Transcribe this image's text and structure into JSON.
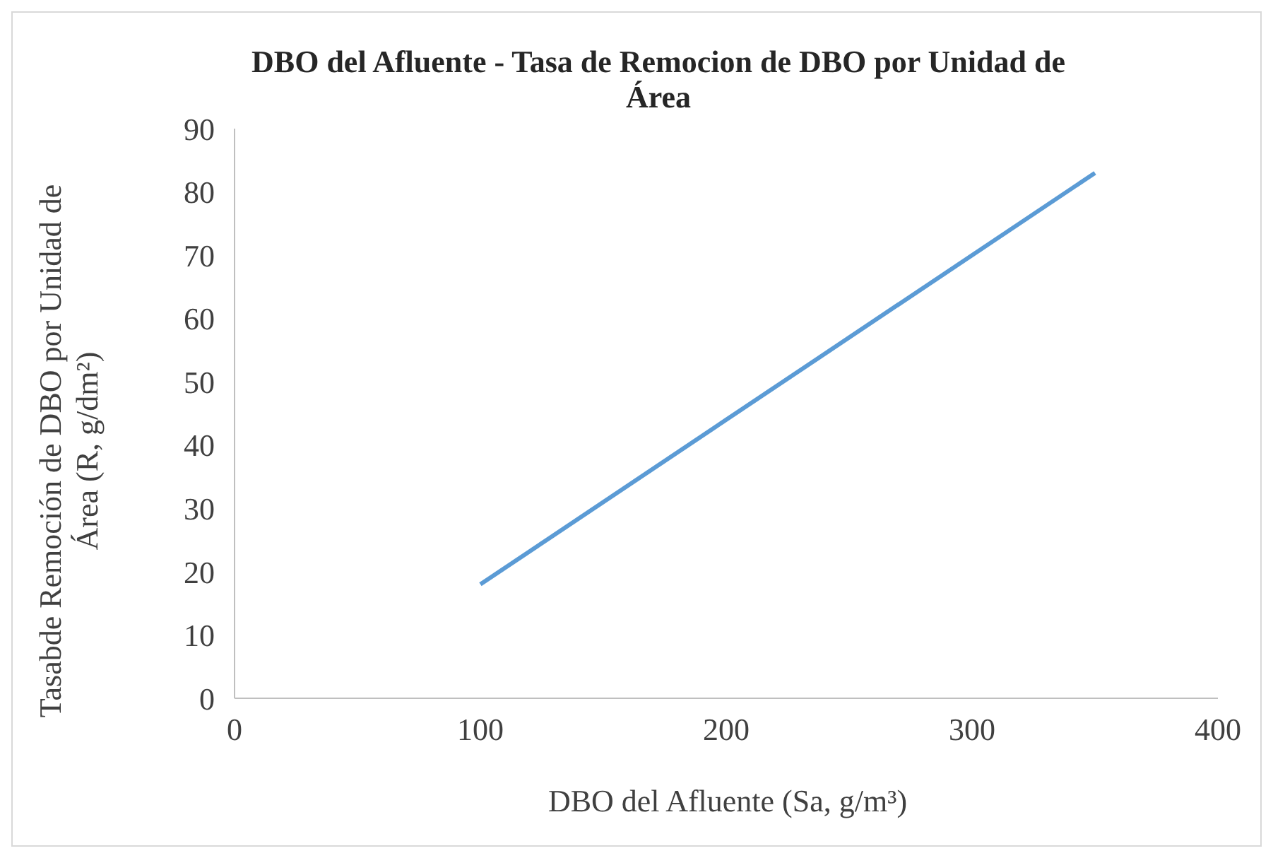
{
  "chart_data": {
    "type": "line",
    "title": "DBO del Afluente - Tasa de Remocion de DBO por Unidad de Área",
    "xlabel": "DBO del Afluente (Sa, g/m³)",
    "ylabel": "Tasabde Remoción de DBO por Unidad de Área (R, g/dm²)",
    "x": [
      100,
      350
    ],
    "series": [
      {
        "color": "#5b9bd5",
        "values": [
          18,
          83
        ]
      }
    ],
    "xlim": [
      0,
      400
    ],
    "xticks": [
      0,
      100,
      200,
      300,
      400
    ],
    "ylim": [
      0,
      90
    ],
    "yticks": [
      0,
      10,
      20,
      30,
      40,
      50,
      60,
      70,
      80,
      90
    ],
    "grid": false,
    "legend": false,
    "marker": "none"
  }
}
